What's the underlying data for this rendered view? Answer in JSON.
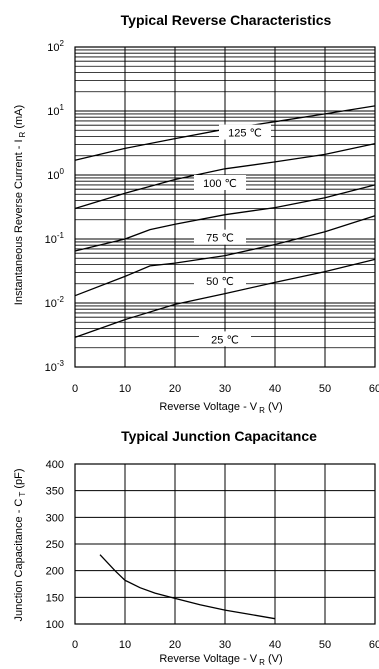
{
  "chart_data": [
    {
      "type": "line",
      "title": "Typical Reverse Characteristics",
      "xlabel": "Reverse Voltage - V",
      "xlabel_sub": "R",
      "xlabel_unit": " (V)",
      "ylabel": "Instantaneous Reverse Current - I",
      "ylabel_sub": "R",
      "ylabel_unit": " (mA)",
      "xlim": [
        0,
        60
      ],
      "ylim": [
        0.001,
        100
      ],
      "yscale": "log",
      "grid": true,
      "x_ticks": [
        "0",
        "10",
        "20",
        "30",
        "40",
        "50",
        "60"
      ],
      "y_ticks": [
        {
          "base": "10",
          "exp": "-3"
        },
        {
          "base": "10",
          "exp": "-2"
        },
        {
          "base": "10",
          "exp": "-1"
        },
        {
          "base": "10",
          "exp": "0"
        },
        {
          "base": "10",
          "exp": "1"
        },
        {
          "base": "10",
          "exp": "2"
        }
      ],
      "series": [
        {
          "name": "125 ℃",
          "label_at": [
            34,
            4.6
          ],
          "x": [
            0,
            10,
            20,
            30,
            40,
            50,
            60
          ],
          "y": [
            1.7,
            2.6,
            3.7,
            5.2,
            6.8,
            9.0,
            12
          ]
        },
        {
          "name": "100 ℃",
          "label_at": [
            29,
            0.75
          ],
          "x": [
            0,
            10,
            20,
            30,
            40,
            50,
            60
          ],
          "y": [
            0.3,
            0.52,
            0.85,
            1.25,
            1.6,
            2.1,
            3.1
          ]
        },
        {
          "name": "75 ℃",
          "label_at": [
            29,
            0.105
          ],
          "x": [
            0,
            10,
            15,
            20,
            30,
            40,
            50,
            60
          ],
          "y": [
            0.065,
            0.1,
            0.14,
            0.17,
            0.24,
            0.31,
            0.44,
            0.7
          ]
        },
        {
          "name": "50 ℃",
          "label_at": [
            29,
            0.022
          ],
          "x": [
            0,
            10,
            15,
            20,
            30,
            40,
            50,
            60
          ],
          "y": [
            0.013,
            0.026,
            0.038,
            0.042,
            0.055,
            0.082,
            0.13,
            0.23
          ]
        },
        {
          "name": "25 ℃",
          "label_at": [
            30,
            0.0027
          ],
          "x": [
            0,
            10,
            20,
            30,
            40,
            50,
            60
          ],
          "y": [
            0.0029,
            0.0055,
            0.0095,
            0.014,
            0.021,
            0.031,
            0.048
          ]
        }
      ]
    },
    {
      "type": "line",
      "title": "Typical Junction Capacitance",
      "xlabel": "Reverse Voltage - V",
      "xlabel_sub": "R",
      "xlabel_unit": " (V)",
      "ylabel": "Junction Capacitance - C",
      "ylabel_sub": "T",
      "ylabel_unit": " (pF)",
      "xlim": [
        0,
        60
      ],
      "ylim": [
        100,
        400
      ],
      "grid": true,
      "x_ticks": [
        "0",
        "10",
        "20",
        "30",
        "40",
        "50",
        "60"
      ],
      "y_ticks": [
        "100",
        "150",
        "200",
        "250",
        "300",
        "350",
        "400"
      ],
      "series": [
        {
          "x": [
            5,
            8,
            10,
            13,
            16,
            20,
            25,
            30,
            35,
            40
          ],
          "y": [
            230,
            200,
            182,
            168,
            158,
            148,
            136,
            126,
            118,
            110
          ]
        }
      ]
    }
  ]
}
